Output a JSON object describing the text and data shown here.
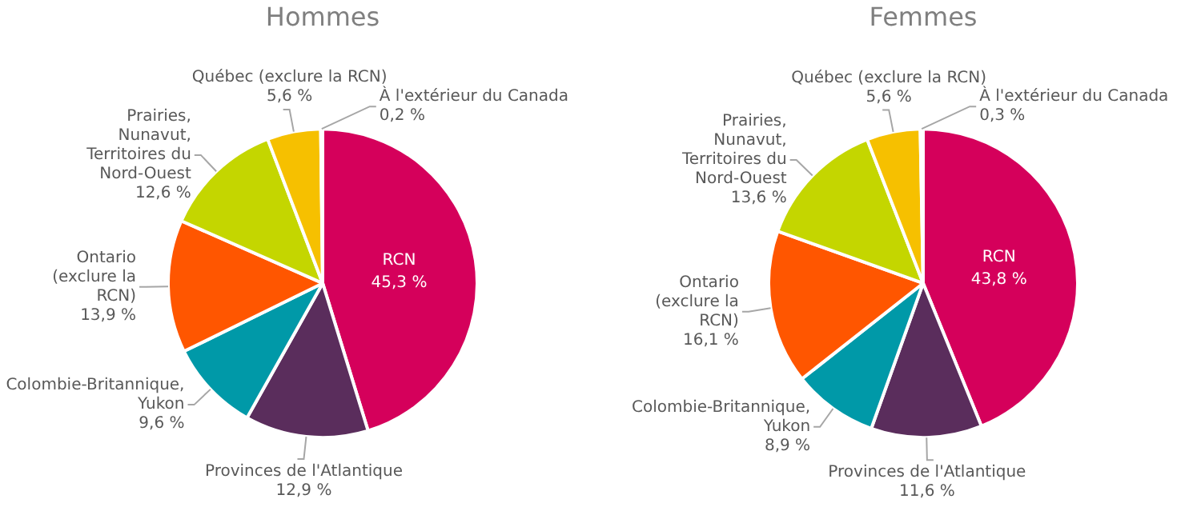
{
  "chart_data": [
    {
      "type": "pie",
      "title": "Hommes",
      "categories": [
        "RCN",
        "Provinces de l'Atlantique",
        "Colombie-Britannique, Yukon",
        "Ontario (exclure la RCN)",
        "Prairies, Nunavut, Territoires du Nord-Ouest",
        "Québec (exclure la RCN)",
        "À l'extérieur du Canada"
      ],
      "values": [
        45.3,
        12.9,
        9.6,
        13.9,
        12.6,
        5.6,
        0.2
      ],
      "colors": [
        "#d5005b",
        "#5a2d5c",
        "#0099a8",
        "#ff5600",
        "#c4d600",
        "#f6c000",
        "#f2f2f2"
      ],
      "value_labels": [
        "45,3 %",
        "12,9 %",
        "9,6 %",
        "13,9 %",
        "12,6 %",
        "5,6 %",
        "0,2 %"
      ],
      "legend": false
    },
    {
      "type": "pie",
      "title": "Femmes",
      "categories": [
        "RCN",
        "Provinces de l'Atlantique",
        "Colombie-Britannique, Yukon",
        "Ontario (exclure la RCN)",
        "Prairies, Nunavut, Territoires du Nord-Ouest",
        "Québec (exclure la RCN)",
        "À l'extérieur du Canada"
      ],
      "values": [
        43.8,
        11.6,
        8.9,
        16.1,
        13.6,
        5.6,
        0.3
      ],
      "colors": [
        "#d5005b",
        "#5a2d5c",
        "#0099a8",
        "#ff5600",
        "#c4d600",
        "#f6c000",
        "#f2f2f2"
      ],
      "value_labels": [
        "43,8 %",
        "11,6 %",
        "8,9 %",
        "16,1 %",
        "13,6 %",
        "5,6 %",
        "0,3 %"
      ],
      "legend": false
    }
  ]
}
